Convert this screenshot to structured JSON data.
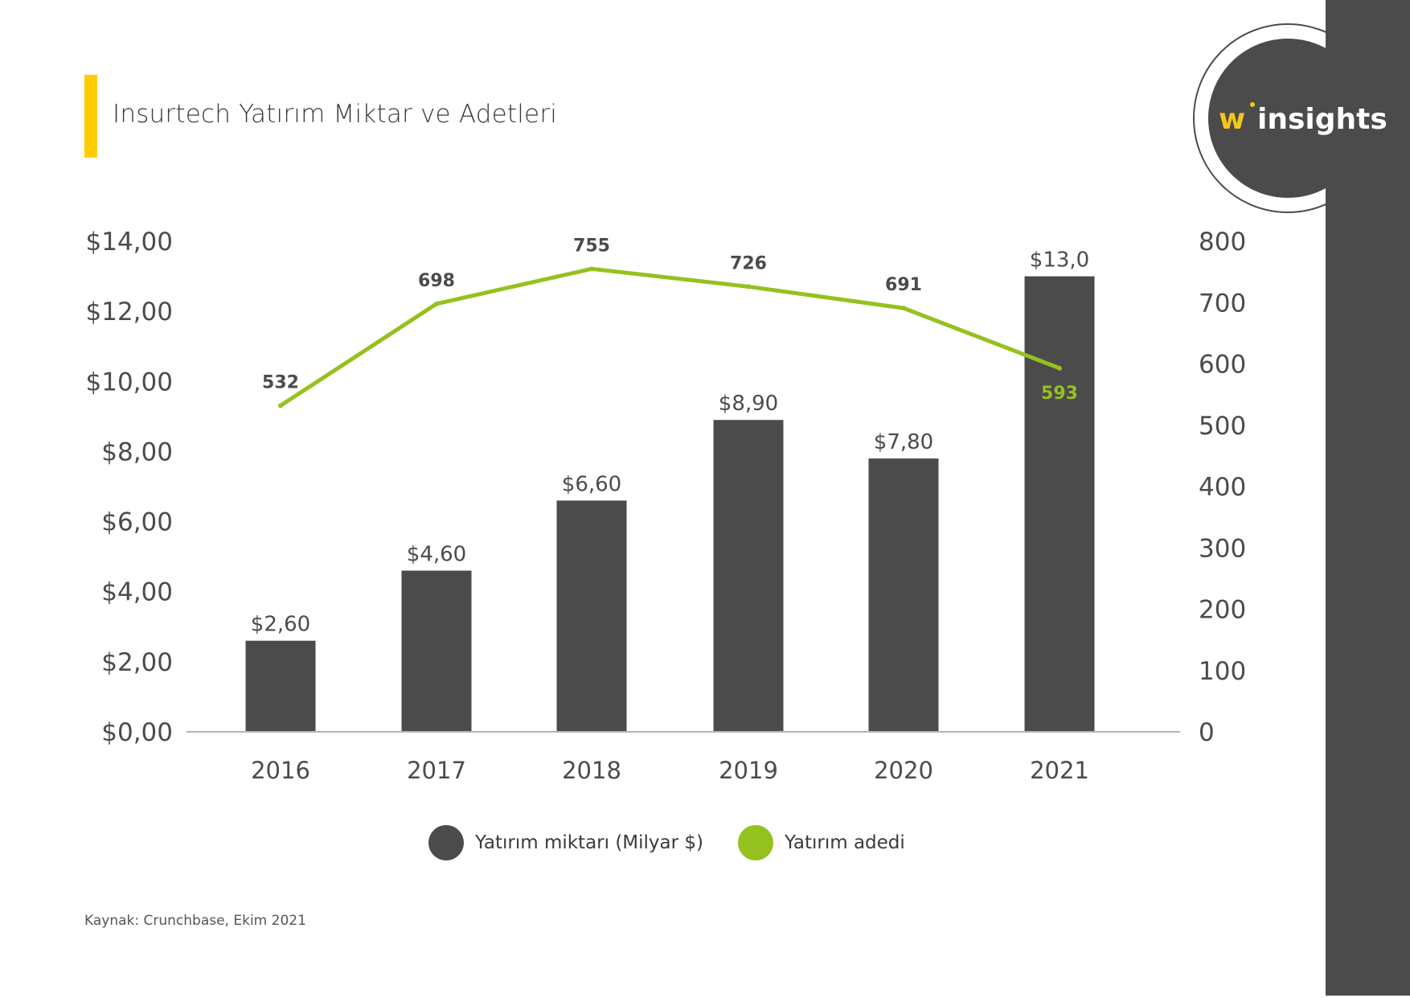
{
  "title": "Insurtech Yatırım Miktar ve Adetleri",
  "source": "Kaynak:  Crunchbase, Ekim 2021",
  "logo": {
    "text_w": "w",
    "text_rest": "insights"
  },
  "colors": {
    "bar": "#4b4b4b",
    "line": "#95c11f",
    "accent": "#ffcc00",
    "panel": "#4b4b4b"
  },
  "chart_data": {
    "type": "bar+line",
    "categories": [
      "2016",
      "2017",
      "2018",
      "2019",
      "2020",
      "2021"
    ],
    "series": [
      {
        "name": "Yatırım miktarı (Milyar $)",
        "type": "bar",
        "axis": "left",
        "values": [
          2.6,
          4.6,
          6.6,
          8.9,
          7.8,
          13.0
        ],
        "labels": [
          "$2,60",
          "$4,60",
          "$6,60",
          "$8,90",
          "$7,80",
          "$13,0"
        ]
      },
      {
        "name": "Yatırım adedi",
        "type": "line",
        "axis": "right",
        "values": [
          532,
          698,
          755,
          726,
          691,
          593
        ],
        "labels": [
          "532",
          "698",
          "755",
          "726",
          "691",
          "593"
        ]
      }
    ],
    "left_axis": {
      "ylim": [
        0,
        14
      ],
      "ticks": [
        "$0,00",
        "$2,00",
        "$4,00",
        "$6,00",
        "$8,00",
        "$10,00",
        "$12,00",
        "$14,00"
      ]
    },
    "right_axis": {
      "ylim": [
        0,
        800
      ],
      "ticks": [
        "0",
        "100",
        "200",
        "300",
        "400",
        "500",
        "600",
        "700",
        "800"
      ]
    },
    "grid": false,
    "legend": "bottom"
  }
}
